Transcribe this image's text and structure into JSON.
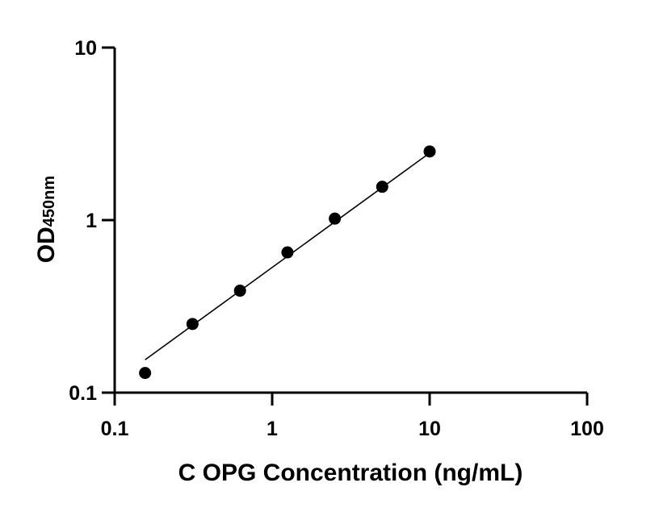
{
  "chart_data": {
    "type": "scatter",
    "xlabel": "C OPG Concentration (ng/mL)",
    "ylabel": {
      "main": "OD",
      "sub": "450nm"
    },
    "x_scale": "log",
    "y_scale": "log",
    "xlim": [
      0.1,
      100
    ],
    "ylim": [
      0.1,
      10
    ],
    "x_ticks": [
      0.1,
      1,
      10,
      100
    ],
    "x_tick_labels": [
      "0.1",
      "1",
      "10",
      "100"
    ],
    "y_ticks": [
      0.1,
      1,
      10
    ],
    "y_tick_labels": [
      "0.1",
      "1",
      "10"
    ],
    "grid": false,
    "series": [
      {
        "points": [
          {
            "x": 0.156,
            "y": 0.13
          },
          {
            "x": 0.312,
            "y": 0.25
          },
          {
            "x": 0.625,
            "y": 0.39
          },
          {
            "x": 1.25,
            "y": 0.65
          },
          {
            "x": 2.5,
            "y": 1.02
          },
          {
            "x": 5,
            "y": 1.56
          },
          {
            "x": 10,
            "y": 2.5
          }
        ],
        "fit_line": {
          "x": [
            0.156,
            10
          ],
          "y": [
            0.155,
            2.45
          ]
        }
      }
    ]
  }
}
